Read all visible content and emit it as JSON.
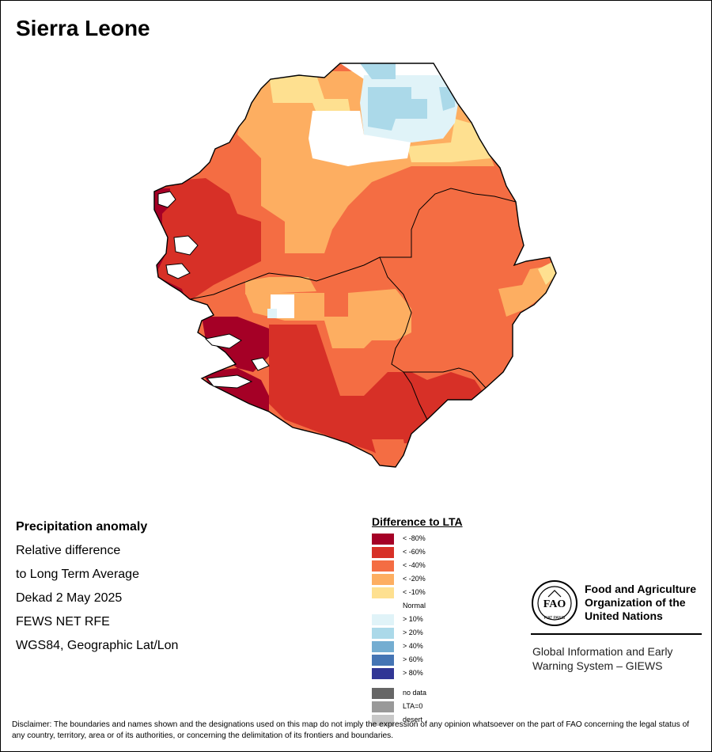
{
  "title": "Sierra Leone",
  "map_info": {
    "line1": "Precipitation anomaly",
    "line2": "Relative difference",
    "line3": "to Long Term Average",
    "line4": "Dekad 2 May 2025",
    "line5": "FEWS NET RFE",
    "line6": "WGS84, Geographic Lat/Lon"
  },
  "legend": {
    "title": "Difference to LTA",
    "items": [
      {
        "label": "< -80%",
        "color": "#a50026"
      },
      {
        "label": "< -60%",
        "color": "#d73027"
      },
      {
        "label": "< -40%",
        "color": "#f46d43"
      },
      {
        "label": "< -20%",
        "color": "#fdae61"
      },
      {
        "label": "< -10%",
        "color": "#fee090"
      },
      {
        "label": "Normal",
        "color": "#ffffff"
      },
      {
        "label": "> 10%",
        "color": "#e0f3f8"
      },
      {
        "label": "> 20%",
        "color": "#abd9e9"
      },
      {
        "label": "> 40%",
        "color": "#74add1"
      },
      {
        "label": "> 60%",
        "color": "#4575b4"
      },
      {
        "label": "> 80%",
        "color": "#313695"
      }
    ],
    "extra": [
      {
        "label": "no data",
        "color": "#666666"
      },
      {
        "label": "LTA=0",
        "color": "#999999"
      },
      {
        "label": "desert",
        "color": "#c8c8c8"
      }
    ]
  },
  "organization": {
    "logo_text": "FAO",
    "logo_motto": "FIAT PANIS",
    "name_line1": "Food and Agriculture",
    "name_line2": "Organization of the",
    "name_line3": "United Nations",
    "system_line1": "Global Information and Early",
    "system_line2": "Warning System – GIEWS"
  },
  "disclaimer": "Disclaimer: The boundaries and names shown and the designations used on this map do not imply the expression of any opinion whatsoever on the part of FAO concerning the legal status of any country, territory, area or of its authorities, or concerning the delimitation of its frontiers and boundaries."
}
